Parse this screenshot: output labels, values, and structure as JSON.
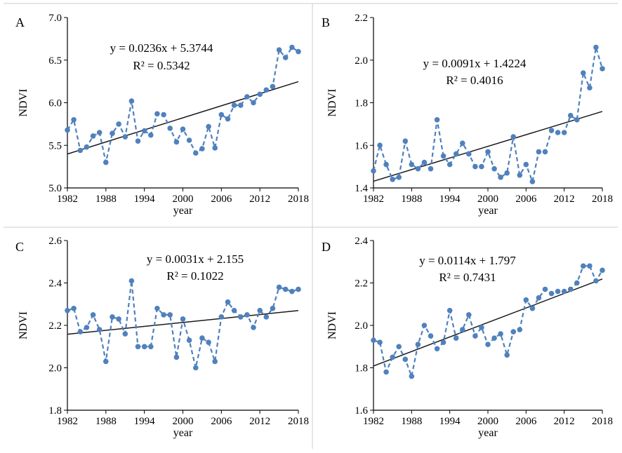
{
  "chart_data": [
    {
      "type": "line",
      "panel": "A",
      "xlabel": "year",
      "ylabel": "NDVI",
      "ylim": [
        5.0,
        7.0
      ],
      "yticks": [
        "5.0",
        "5.5",
        "6.0",
        "6.5",
        "7.0"
      ],
      "xlim": [
        1982,
        2018
      ],
      "xticks": [
        "1982",
        "1988",
        "1994",
        "2000",
        "2006",
        "2012",
        "2018"
      ],
      "equation": "y = 0.0236x + 5.3744",
      "r2": "R² = 0.5342",
      "trend": {
        "slope": 0.0236,
        "intercept": 5.3744
      },
      "grid": false,
      "series": [
        {
          "style": "dashed-markers",
          "x": [
            1982,
            1983,
            1984,
            1985,
            1986,
            1987,
            1988,
            1989,
            1990,
            1991,
            1992,
            1993,
            1994,
            1995,
            1996,
            1997,
            1998,
            1999,
            2000,
            2001,
            2002,
            2003,
            2004,
            2005,
            2006,
            2007,
            2008,
            2009,
            2010,
            2011,
            2012,
            2013,
            2014,
            2015,
            2016,
            2017,
            2018
          ],
          "y": [
            5.68,
            5.8,
            5.44,
            5.48,
            5.61,
            5.65,
            5.3,
            5.64,
            5.75,
            5.6,
            6.02,
            5.55,
            5.67,
            5.62,
            5.87,
            5.86,
            5.7,
            5.54,
            5.69,
            5.56,
            5.41,
            5.46,
            5.72,
            5.47,
            5.86,
            5.81,
            5.97,
            5.97,
            6.07,
            6.0,
            6.1,
            6.15,
            6.19,
            6.62,
            6.53,
            6.65,
            6.6
          ]
        }
      ]
    },
    {
      "type": "line",
      "panel": "B",
      "xlabel": "year",
      "ylabel": "NDVI",
      "ylim": [
        1.4,
        2.2
      ],
      "yticks": [
        "1.4",
        "1.6",
        "1.8",
        "2.0",
        "2.2"
      ],
      "xlim": [
        1982,
        2018
      ],
      "xticks": [
        "1982",
        "1988",
        "1994",
        "2000",
        "2006",
        "2012",
        "2018"
      ],
      "equation": "y = 0.0091x + 1.4224",
      "r2": "R² = 0.4016",
      "trend": {
        "slope": 0.0091,
        "intercept": 1.4224
      },
      "grid": false,
      "series": [
        {
          "style": "dashed-markers",
          "x": [
            1982,
            1983,
            1984,
            1985,
            1986,
            1987,
            1988,
            1989,
            1990,
            1991,
            1992,
            1993,
            1994,
            1995,
            1996,
            1997,
            1998,
            1999,
            2000,
            2001,
            2002,
            2003,
            2004,
            2005,
            2006,
            2007,
            2008,
            2009,
            2010,
            2011,
            2012,
            2013,
            2014,
            2015,
            2016,
            2017,
            2018
          ],
          "y": [
            1.48,
            1.6,
            1.51,
            1.44,
            1.45,
            1.62,
            1.51,
            1.49,
            1.52,
            1.49,
            1.72,
            1.55,
            1.51,
            1.56,
            1.61,
            1.56,
            1.5,
            1.5,
            1.57,
            1.49,
            1.45,
            1.47,
            1.64,
            1.46,
            1.51,
            1.43,
            1.57,
            1.57,
            1.67,
            1.66,
            1.66,
            1.74,
            1.72,
            1.94,
            1.87,
            2.06,
            1.96
          ]
        }
      ]
    },
    {
      "type": "line",
      "panel": "C",
      "xlabel": "year",
      "ylabel": "NDVI",
      "ylim": [
        1.8,
        2.6
      ],
      "yticks": [
        "1.8",
        "2.0",
        "2.2",
        "2.4",
        "2.6"
      ],
      "xlim": [
        1982,
        2018
      ],
      "xticks": [
        "1982",
        "1988",
        "1994",
        "2000",
        "2006",
        "2012",
        "2018"
      ],
      "equation": "y = 0.0031x + 2.155",
      "r2": "R² = 0.1022",
      "trend": {
        "slope": 0.0031,
        "intercept": 2.155
      },
      "grid": false,
      "series": [
        {
          "style": "dashed-markers",
          "x": [
            1982,
            1983,
            1984,
            1985,
            1986,
            1987,
            1988,
            1989,
            1990,
            1991,
            1992,
            1993,
            1994,
            1995,
            1996,
            1997,
            1998,
            1999,
            2000,
            2001,
            2002,
            2003,
            2004,
            2005,
            2006,
            2007,
            2008,
            2009,
            2010,
            2011,
            2012,
            2013,
            2014,
            2015,
            2016,
            2017,
            2018
          ],
          "y": [
            2.27,
            2.28,
            2.17,
            2.19,
            2.25,
            2.18,
            2.03,
            2.24,
            2.23,
            2.16,
            2.41,
            2.1,
            2.1,
            2.1,
            2.28,
            2.25,
            2.25,
            2.05,
            2.23,
            2.13,
            2.0,
            2.14,
            2.12,
            2.03,
            2.24,
            2.31,
            2.27,
            2.24,
            2.25,
            2.19,
            2.27,
            2.24,
            2.28,
            2.38,
            2.37,
            2.36,
            2.37
          ]
        }
      ]
    },
    {
      "type": "line",
      "panel": "D",
      "xlabel": "year",
      "ylabel": "NDVI",
      "ylim": [
        1.6,
        2.4
      ],
      "yticks": [
        "1.6",
        "1.8",
        "2.0",
        "2.2",
        "2.4"
      ],
      "xlim": [
        1982,
        2018
      ],
      "xticks": [
        "1982",
        "1988",
        "1994",
        "2000",
        "2006",
        "2012",
        "2018"
      ],
      "equation": "y = 0.0114x + 1.797",
      "r2": "R² = 0.7431",
      "trend": {
        "slope": 0.0114,
        "intercept": 1.797
      },
      "grid": false,
      "series": [
        {
          "style": "dashed-markers",
          "x": [
            1982,
            1983,
            1984,
            1985,
            1986,
            1987,
            1988,
            1989,
            1990,
            1991,
            1992,
            1993,
            1994,
            1995,
            1996,
            1997,
            1998,
            1999,
            2000,
            2001,
            2002,
            2003,
            2004,
            2005,
            2006,
            2007,
            2008,
            2009,
            2010,
            2011,
            2012,
            2013,
            2014,
            2015,
            2016,
            2017,
            2018
          ],
          "y": [
            1.93,
            1.92,
            1.78,
            1.85,
            1.9,
            1.84,
            1.76,
            1.91,
            2.0,
            1.95,
            1.89,
            1.92,
            2.07,
            1.94,
            1.98,
            2.05,
            1.95,
            1.99,
            1.91,
            1.94,
            1.96,
            1.86,
            1.97,
            1.98,
            2.12,
            2.08,
            2.13,
            2.17,
            2.15,
            2.16,
            2.16,
            2.17,
            2.2,
            2.28,
            2.28,
            2.21,
            2.26
          ]
        }
      ]
    }
  ],
  "colors": {
    "series": "#4f81bd",
    "trend": "#1a1a1a",
    "divider": "#cccccc"
  }
}
